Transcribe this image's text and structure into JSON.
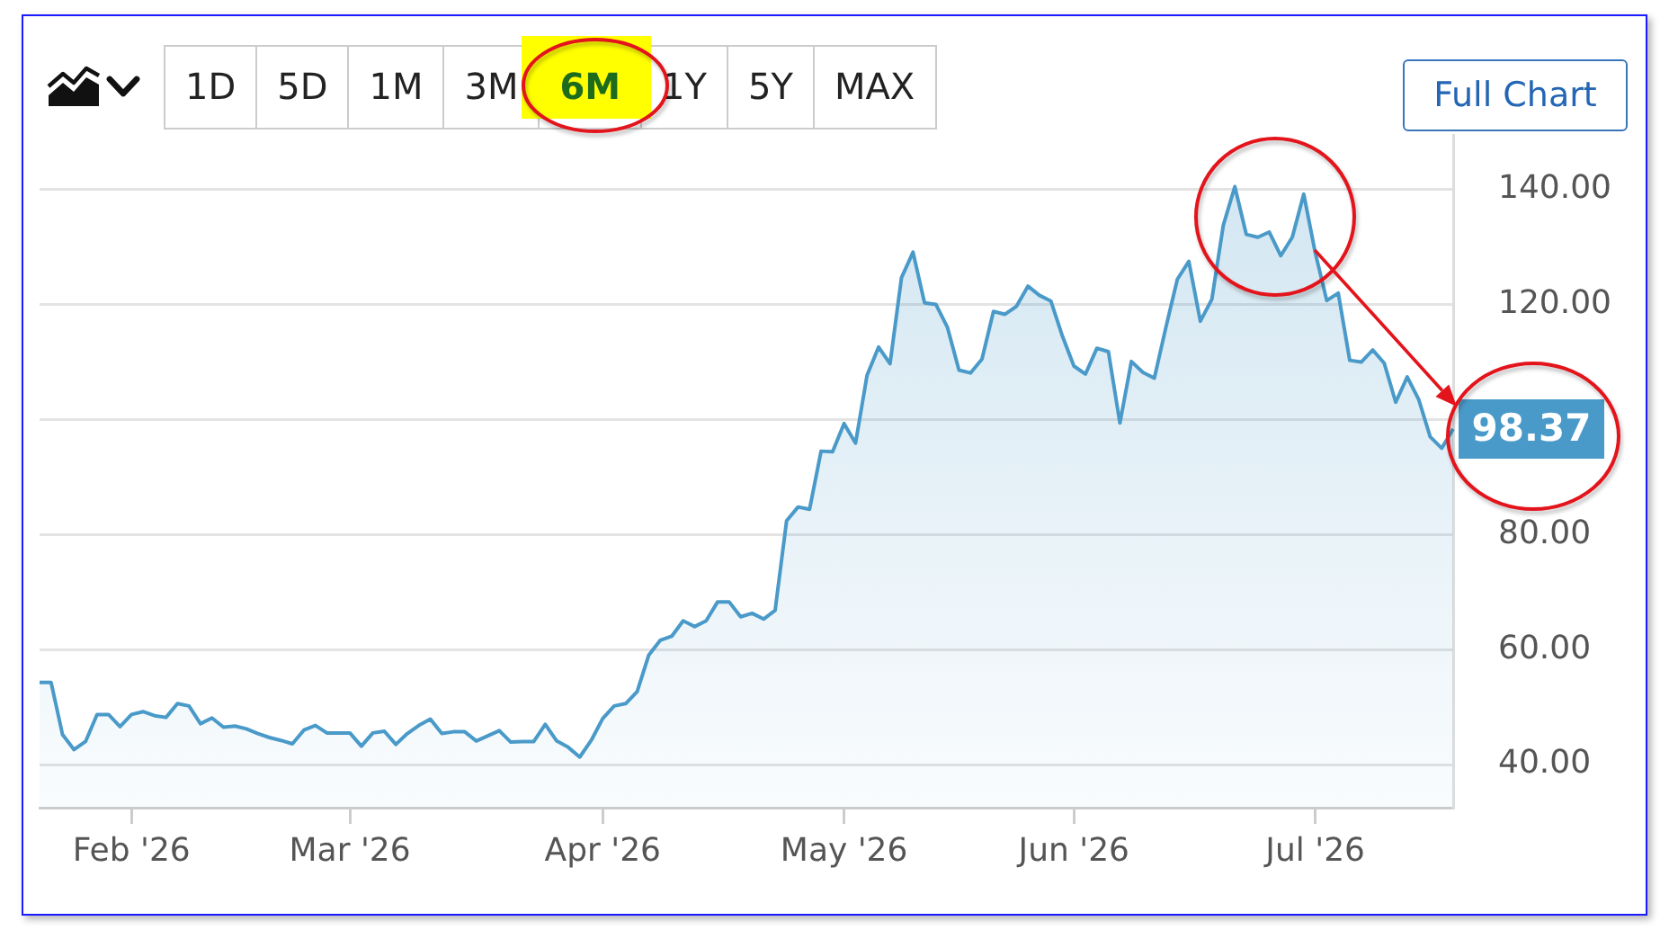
{
  "chart_data": {
    "type": "area",
    "categories": [
      null,
      null,
      null,
      null,
      null,
      null,
      null,
      null,
      "Feb '26",
      null,
      null,
      null,
      null,
      null,
      null,
      null,
      null,
      null,
      null,
      null,
      null,
      null,
      null,
      null,
      null,
      null,
      null,
      "Mar '26",
      null,
      null,
      null,
      null,
      null,
      null,
      null,
      null,
      null,
      null,
      null,
      null,
      null,
      null,
      null,
      null,
      null,
      null,
      null,
      null,
      null,
      "Apr '26",
      null,
      null,
      null,
      null,
      null,
      null,
      null,
      null,
      null,
      null,
      null,
      null,
      null,
      null,
      null,
      null,
      null,
      null,
      null,
      null,
      "May '26",
      null,
      null,
      null,
      null,
      null,
      null,
      null,
      null,
      null,
      null,
      null,
      null,
      null,
      null,
      null,
      null,
      null,
      null,
      null,
      "Jun '26",
      null,
      null,
      null,
      null,
      null,
      null,
      null,
      null,
      null,
      null,
      null,
      null,
      null,
      null,
      null,
      null,
      null,
      null,
      null,
      null,
      "Jul '26",
      null,
      null,
      null,
      null,
      null,
      null,
      null,
      null,
      null,
      null,
      null,
      null
    ],
    "values": [
      54.3,
      54.3,
      45.2,
      42.6,
      44.0,
      48.7,
      48.7,
      46.6,
      48.7,
      49.2,
      48.5,
      48.2,
      50.6,
      50.2,
      47.1,
      48.1,
      46.5,
      46.7,
      46.2,
      45.4,
      44.7,
      44.2,
      43.6,
      46.0,
      46.8,
      45.5,
      45.5,
      45.5,
      43.2,
      45.5,
      45.8,
      43.5,
      45.4,
      46.8,
      47.9,
      45.4,
      45.7,
      45.7,
      44.1,
      45.0,
      45.9,
      43.9,
      44.0,
      44.0,
      47.0,
      44.1,
      43.0,
      41.3,
      44.2,
      48.0,
      50.2,
      50.6,
      52.7,
      59.0,
      61.6,
      62.3,
      65.0,
      64.0,
      65.0,
      68.3,
      68.3,
      65.7,
      66.3,
      65.3,
      66.8,
      82.4,
      84.8,
      84.4,
      94.5,
      94.4,
      99.3,
      95.9,
      107.7,
      112.6,
      109.7,
      124.7,
      129.1,
      120.3,
      120.0,
      116.0,
      108.6,
      108.1,
      110.5,
      118.8,
      118.3,
      119.7,
      123.2,
      121.6,
      120.6,
      114.5,
      109.3,
      107.9,
      112.4,
      111.8,
      99.4,
      110.1,
      108.2,
      107.2,
      116.0,
      124.4,
      127.5,
      117.1,
      120.9,
      133.8,
      140.5,
      132.2,
      131.7,
      132.6,
      128.5,
      131.7,
      139.2,
      129.0,
      120.7,
      122.0,
      110.3,
      110.0,
      112.1,
      109.8,
      103.0,
      107.4,
      103.5,
      97.0,
      95.0,
      98.37
    ],
    "value_labels": [
      null,
      null,
      null,
      null,
      null,
      null,
      null,
      null,
      null,
      null,
      null,
      null,
      null,
      null,
      null,
      null,
      null,
      null,
      null,
      null,
      null,
      null,
      null,
      null,
      null,
      null,
      null,
      null,
      null,
      null,
      null,
      null,
      null,
      null,
      null,
      null,
      null,
      null,
      null,
      null,
      null,
      null,
      null,
      null,
      null,
      null,
      null,
      null,
      null,
      null,
      null,
      null,
      null,
      null,
      null,
      null,
      null,
      null,
      null,
      null,
      null,
      null,
      null,
      null,
      null,
      null,
      null,
      null,
      null,
      null,
      null,
      null,
      null,
      null,
      null,
      null,
      null,
      null,
      null,
      null,
      null,
      null,
      null,
      null,
      null,
      null,
      null,
      null,
      null,
      null,
      null,
      null,
      null,
      null,
      null,
      null,
      null,
      null,
      null,
      null,
      null,
      null,
      null,
      null,
      null,
      null,
      null,
      null,
      null,
      null,
      null,
      null,
      null,
      null,
      null,
      null,
      null,
      null,
      null,
      null,
      null,
      null,
      null,
      "98.37"
    ],
    "color": "#4a9ac9",
    "ylim": [
      32.5,
      149.5
    ],
    "yticks": [
      {
        "value": 40,
        "label": "40.00"
      },
      {
        "value": 60,
        "label": "60.00"
      },
      {
        "value": 80,
        "label": "80.00"
      },
      {
        "value": 100,
        "label": null
      },
      {
        "value": 120,
        "label": "120.00"
      },
      {
        "value": 140,
        "label": "140.00"
      }
    ],
    "grid": "y",
    "marker": "none",
    "line_style": "solid",
    "annotations": [
      "1D",
      "5D",
      "1M",
      "3M",
      "6M",
      "1Y",
      "5Y",
      "MAX",
      "Full Chart"
    ]
  }
}
